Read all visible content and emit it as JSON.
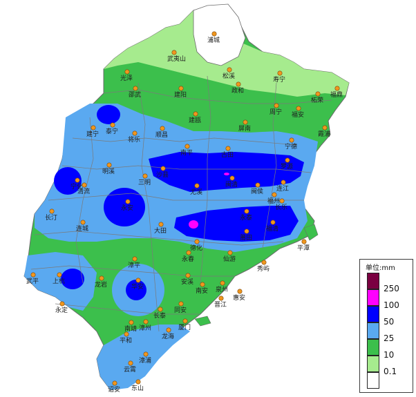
{
  "legend": {
    "title": "单位:mm",
    "levels": [
      {
        "label": "250",
        "color": "#7a0041"
      },
      {
        "label": "100",
        "color": "#ff00ff"
      },
      {
        "label": "50",
        "color": "#0000ff"
      },
      {
        "label": "25",
        "color": "#5aa9f0"
      },
      {
        "label": "10",
        "color": "#3cbf4c"
      },
      {
        "label": "0.1",
        "color": "#a6eb8e"
      },
      {
        "label": "",
        "color": "#ffffff"
      }
    ]
  },
  "cities": [
    "浦城",
    "武夷山",
    "松溪",
    "政和",
    "寿宁",
    "福鼎",
    "光泽",
    "邵武",
    "建阳",
    "柘荣",
    "霞浦",
    "周宁",
    "福安",
    "建宁",
    "泰宁",
    "将乐",
    "顺昌",
    "建瓯",
    "屏南",
    "宁德",
    "南平",
    "古田",
    "罗源",
    "明溪",
    "沙县",
    "闽清",
    "连江",
    "宁化",
    "清流",
    "三明",
    "尤溪",
    "闽侯",
    "福州",
    "长乐",
    "永安",
    "永泰",
    "福清",
    "平潭",
    "长汀",
    "连城",
    "大田",
    "德化",
    "莆田",
    "仙游",
    "永春",
    "秀屿",
    "上杭",
    "龙岩",
    "漳平",
    "安溪",
    "南安",
    "晋江",
    "泉州",
    "惠安",
    "武平",
    "永定",
    "华安",
    "同安",
    "长泰",
    "南靖",
    "漳州",
    "厦门",
    "龙海",
    "平和",
    "漳浦",
    "云霄",
    "诏安",
    "东山"
  ]
}
